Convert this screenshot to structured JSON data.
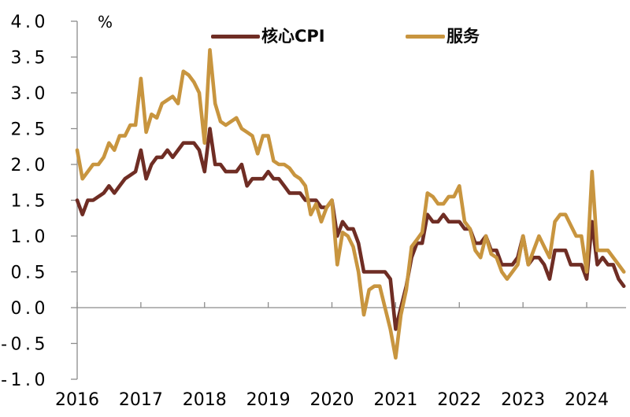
{
  "colors": {
    "core_cpi": "#6F2D24",
    "services": "#C8953F",
    "axis": "#8C8C8C",
    "text": "#000000",
    "background": "#FFFFFF"
  },
  "chart_data": {
    "type": "line",
    "title": "",
    "unit": "%",
    "x_start": "2016-01",
    "x_end": "2024-08",
    "x_frequency": "monthly",
    "ylim": [
      -1.0,
      4.0
    ],
    "y_tick_step": 0.5,
    "grid": false,
    "legend_position": "top-center",
    "y_tick_labels": [
      "4.0",
      "3.5",
      "3.0",
      "2.5",
      "2.0",
      "1.5",
      "1.0",
      "0.5",
      "0.0",
      "-0.5",
      "-1.0"
    ],
    "x_tick_labels": [
      "2016",
      "2017",
      "2018",
      "2019",
      "2020",
      "2021",
      "2022",
      "2023",
      "2024"
    ],
    "series": [
      {
        "name": "核心CPI",
        "color": "#6F2D24",
        "values": [
          1.5,
          1.3,
          1.5,
          1.5,
          1.55,
          1.6,
          1.7,
          1.6,
          1.7,
          1.8,
          1.85,
          1.9,
          2.2,
          1.8,
          2.0,
          2.1,
          2.1,
          2.2,
          2.1,
          2.2,
          2.3,
          2.3,
          2.3,
          2.2,
          1.9,
          2.5,
          2.0,
          2.0,
          1.9,
          1.9,
          1.9,
          2.0,
          1.7,
          1.8,
          1.8,
          1.8,
          1.9,
          1.8,
          1.8,
          1.7,
          1.6,
          1.6,
          1.6,
          1.5,
          1.5,
          1.5,
          1.4,
          1.4,
          1.5,
          1.0,
          1.2,
          1.1,
          1.1,
          0.9,
          0.5,
          0.5,
          0.5,
          0.5,
          0.5,
          0.4,
          -0.3,
          0.0,
          0.3,
          0.7,
          0.9,
          0.9,
          1.3,
          1.2,
          1.2,
          1.3,
          1.2,
          1.2,
          1.2,
          1.1,
          1.1,
          0.9,
          0.9,
          1.0,
          0.8,
          0.8,
          0.6,
          0.6,
          0.6,
          0.7,
          1.0,
          0.6,
          0.7,
          0.7,
          0.6,
          0.4,
          0.8,
          0.8,
          0.8,
          0.6,
          0.6,
          0.6,
          0.4,
          1.2,
          0.6,
          0.7,
          0.6,
          0.6,
          0.4,
          0.3
        ]
      },
      {
        "name": "服务",
        "color": "#C8953F",
        "values": [
          2.2,
          1.8,
          1.9,
          2.0,
          2.0,
          2.1,
          2.3,
          2.2,
          2.4,
          2.4,
          2.55,
          2.55,
          3.2,
          2.45,
          2.7,
          2.65,
          2.85,
          2.9,
          2.95,
          2.85,
          3.3,
          3.25,
          3.15,
          3.0,
          2.3,
          3.6,
          2.85,
          2.6,
          2.55,
          2.6,
          2.65,
          2.5,
          2.45,
          2.4,
          2.15,
          2.4,
          2.4,
          2.05,
          2.0,
          2.0,
          1.95,
          1.85,
          1.8,
          1.7,
          1.3,
          1.45,
          1.2,
          1.4,
          1.5,
          0.6,
          1.05,
          1.0,
          0.85,
          0.5,
          -0.1,
          0.25,
          0.3,
          0.3,
          0.0,
          -0.3,
          -0.7,
          -0.1,
          0.25,
          0.85,
          0.95,
          1.05,
          1.6,
          1.55,
          1.45,
          1.45,
          1.55,
          1.55,
          1.7,
          1.2,
          1.1,
          0.8,
          0.7,
          1.0,
          0.75,
          0.7,
          0.5,
          0.4,
          0.5,
          0.6,
          1.0,
          0.6,
          0.8,
          1.0,
          0.85,
          0.7,
          1.2,
          1.3,
          1.3,
          1.15,
          1.0,
          1.0,
          0.5,
          1.9,
          0.8,
          0.8,
          0.8,
          0.7,
          0.6,
          0.5
        ]
      }
    ]
  }
}
